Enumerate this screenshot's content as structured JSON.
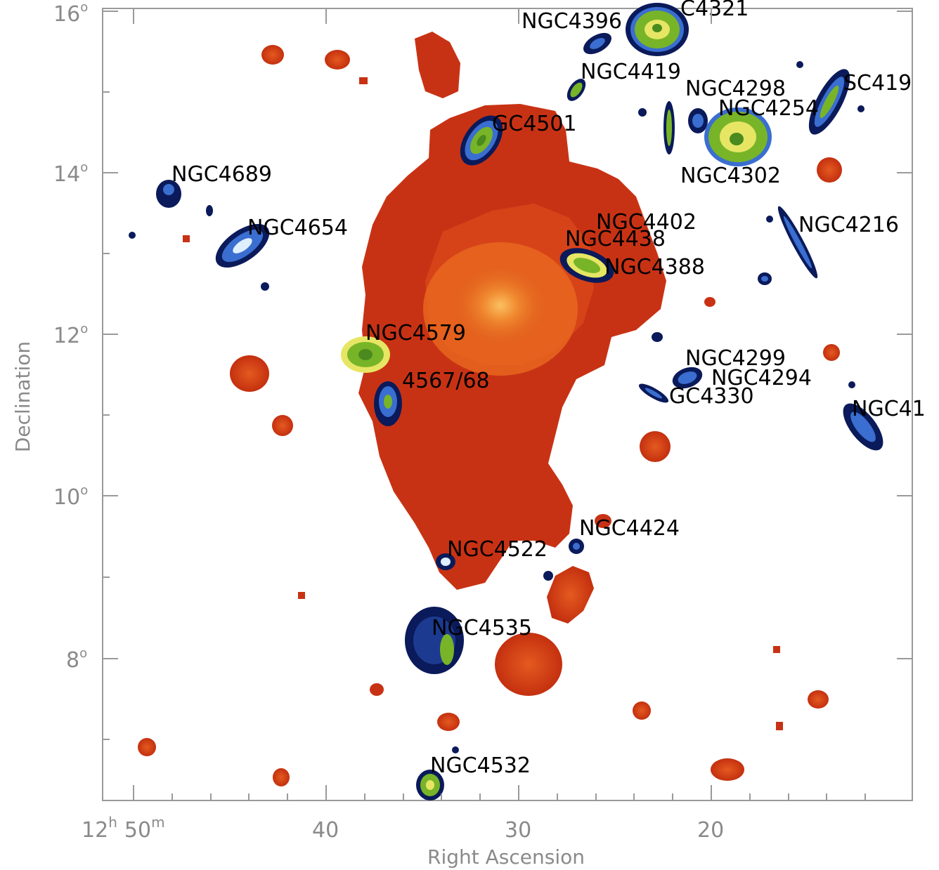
{
  "axes": {
    "xlabel": "Right Ascension",
    "ylabel": "Declination",
    "x_ticks": [
      {
        "h": "12",
        "h_unit": "h",
        "m": "50",
        "m_unit": "m"
      },
      {
        "m": "40"
      },
      {
        "m": "30"
      },
      {
        "m": "20"
      }
    ],
    "y_ticks": [
      {
        "value": "16",
        "unit": "o"
      },
      {
        "value": "14",
        "unit": "o"
      },
      {
        "value": "12",
        "unit": "o"
      },
      {
        "value": "10",
        "unit": "o"
      },
      {
        "value": "8",
        "unit": "o"
      }
    ]
  },
  "galaxy_labels": [
    "NGC4396",
    "C4321",
    "NGC4419",
    "NGC4298",
    "NGC4254",
    "SC419",
    "GC4501",
    "NGC4689",
    "NGC4302",
    "NGC4654",
    "NGC4402",
    "NGC4438",
    "NGC4216",
    "NGC4388",
    "NGC4579",
    "NGC4299",
    "NGC4294",
    "4567/68",
    "GC4330",
    "NGC41",
    "NGC4424",
    "NGC4522",
    "NGC4535",
    "NGC4532"
  ],
  "colors": {
    "xray_outer": "#c83214",
    "xray_mid": "#d9461a",
    "xray_inner": "#e8661f",
    "xray_core": "#f4a040",
    "hi_dark": "#0a1a5a",
    "hi_mid": "#3a6ed0",
    "hi_green": "#78b428",
    "hi_yellow": "#e6e664"
  }
}
